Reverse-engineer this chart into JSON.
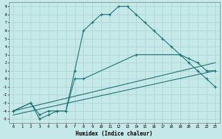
{
  "xlabel": "Humidex (Indice chaleur)",
  "bg_color": "#c5e8e8",
  "grid_color": "#b0d4d4",
  "line_color": "#1a7070",
  "xlim": [
    -0.5,
    23.5
  ],
  "ylim": [
    -5.5,
    9.5
  ],
  "yticks": [
    9,
    8,
    7,
    6,
    5,
    4,
    3,
    2,
    1,
    0,
    -1,
    -2,
    -3,
    -4,
    -5
  ],
  "xticks": [
    0,
    1,
    2,
    3,
    4,
    5,
    6,
    7,
    8,
    9,
    10,
    11,
    12,
    13,
    14,
    15,
    16,
    17,
    18,
    19,
    20,
    21,
    22,
    23
  ],
  "curve1_x": [
    0,
    2,
    3,
    4,
    5,
    6,
    7,
    8,
    9,
    10,
    11,
    12,
    13,
    14,
    15,
    16,
    17,
    18,
    19,
    20,
    21,
    22,
    23
  ],
  "curve1_y": [
    -4,
    -3,
    -5,
    -4.5,
    -4,
    -4,
    1,
    6,
    7,
    8,
    8,
    9,
    9,
    8,
    7,
    6,
    5,
    4,
    3,
    2,
    1,
    0,
    -1
  ],
  "curve2_x": [
    0,
    2,
    3,
    4,
    5,
    6,
    7,
    8,
    14,
    19,
    20,
    21,
    22,
    23
  ],
  "curve2_y": [
    -4,
    -3,
    -4.5,
    -4,
    -4,
    -4,
    0,
    0,
    3,
    3,
    2.5,
    2,
    1,
    1
  ],
  "line1_x": [
    0,
    23
  ],
  "line1_y": [
    -4,
    2
  ],
  "line2_x": [
    0,
    23
  ],
  "line2_y": [
    -4.5,
    1
  ]
}
